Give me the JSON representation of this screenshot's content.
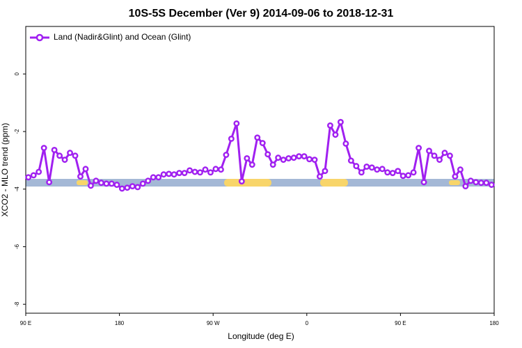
{
  "chart_data": {
    "type": "line",
    "title": "10S-5S December (Ver 9)   2014-09-06 to 2018-12-31",
    "x_label": "Longitude (deg E)",
    "y_label": "XCO2 - MLO trend (ppm)",
    "xlim": [
      90,
      540
    ],
    "ylim": [
      -8.31,
      1.65
    ],
    "xticks": [
      {
        "value": 90,
        "label": "90 E"
      },
      180,
      {
        "value": 270,
        "label": "90 W"
      },
      {
        "value": 360,
        "label": "0"
      },
      {
        "value": 450,
        "label": "90 E"
      },
      {
        "value": 540,
        "label": "180"
      }
    ],
    "yticks": [
      0,
      -2,
      -4,
      -6,
      -8
    ],
    "legend_position": "top-left",
    "x": [
      92.5,
      97.5,
      102.5,
      107.5,
      112.5,
      117.5,
      122.5,
      127.5,
      132.5,
      137.5,
      142.5,
      147.5,
      152.5,
      157.5,
      162.5,
      167.5,
      172.5,
      177.5,
      182.5,
      187.5,
      192.5,
      197.5,
      202.5,
      207.5,
      212.5,
      217.5,
      222.5,
      227.5,
      232.5,
      237.5,
      242.5,
      247.5,
      252.5,
      257.5,
      262.5,
      267.5,
      272.5,
      277.5,
      282.5,
      287.5,
      292.5,
      297.5,
      302.5,
      307.5,
      312.5,
      317.5,
      322.5,
      327.5,
      332.5,
      337.5,
      342.5,
      347.5,
      352.5,
      357.5,
      362.5,
      367.5,
      372.5,
      377.5,
      382.5,
      387.5,
      392.5,
      397.5,
      402.5,
      407.5,
      412.5,
      417.5,
      422.5,
      427.5,
      432.5,
      437.5,
      442.5,
      447.5,
      452.5,
      457.5,
      462.5,
      467.5,
      472.5,
      477.5,
      482.5,
      487.5,
      492.5,
      497.5,
      502.5,
      507.5,
      512.5,
      517.5,
      522.5,
      527.5,
      532.5,
      537.5
    ],
    "series": [
      {
        "name": "Land (Nadir&Glint) and Ocean (Glint)",
        "color": "#a020f0",
        "values": [
          -3.59,
          -3.52,
          -3.4,
          -2.57,
          -3.76,
          -2.64,
          -2.84,
          -2.98,
          -2.74,
          -2.84,
          -3.56,
          -3.3,
          -3.88,
          -3.71,
          -3.78,
          -3.81,
          -3.81,
          -3.85,
          -3.98,
          -3.95,
          -3.9,
          -3.93,
          -3.81,
          -3.71,
          -3.59,
          -3.59,
          -3.49,
          -3.47,
          -3.49,
          -3.44,
          -3.44,
          -3.35,
          -3.4,
          -3.42,
          -3.32,
          -3.42,
          -3.3,
          -3.32,
          -2.81,
          -2.25,
          -1.72,
          -3.73,
          -2.93,
          -3.15,
          -2.21,
          -2.4,
          -2.79,
          -3.15,
          -2.91,
          -2.98,
          -2.93,
          -2.91,
          -2.86,
          -2.86,
          -2.96,
          -2.98,
          -3.56,
          -3.37,
          -1.79,
          -2.11,
          -1.67,
          -2.42,
          -3.01,
          -3.2,
          -3.42,
          -3.22,
          -3.25,
          -3.32,
          -3.3,
          -3.42,
          -3.44,
          -3.37,
          -3.54,
          -3.52,
          -3.42,
          -2.57,
          -3.76,
          -2.67,
          -2.84,
          -2.98,
          -2.74,
          -2.84,
          -3.56,
          -3.32,
          -3.9,
          -3.71,
          -3.76,
          -3.78,
          -3.78,
          -3.85
        ]
      }
    ]
  }
}
